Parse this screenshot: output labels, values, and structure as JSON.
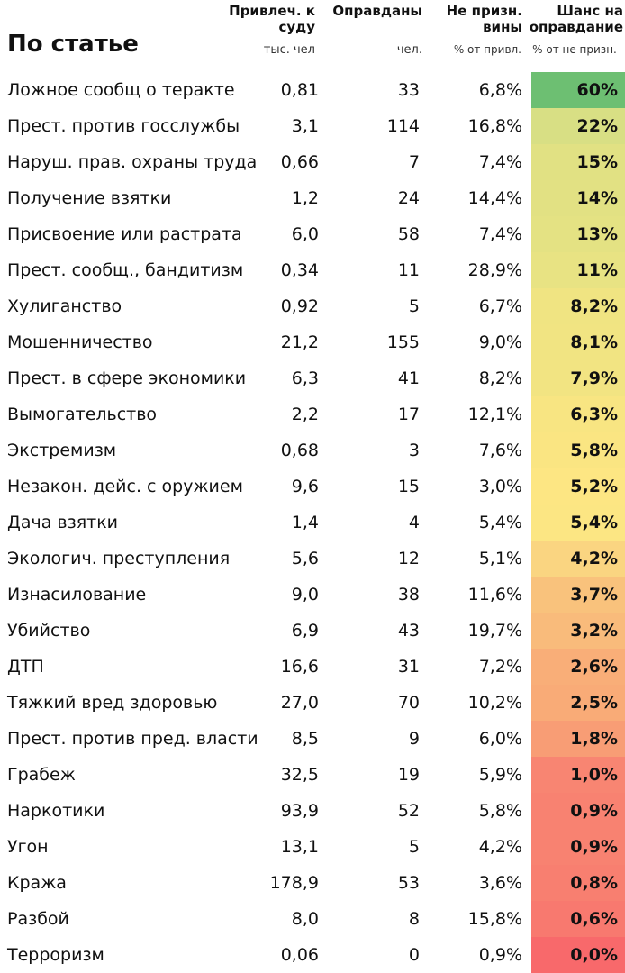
{
  "chart_data": {
    "type": "table",
    "title": "По статье",
    "columns": [
      {
        "key": "accused",
        "header": "Привлеч. к суду",
        "unit": "тыс. чел"
      },
      {
        "key": "acquitted",
        "header": "Оправданы",
        "unit": "чел."
      },
      {
        "key": "not_guilty",
        "header": "Не призн. вины",
        "unit": "% от привл."
      },
      {
        "key": "chance",
        "header": "Шанс на оправдание",
        "unit": "% от не призн."
      }
    ],
    "rows": [
      {
        "name": "Ложное сообщ о теракте",
        "accused": "0,81",
        "acquitted": "33",
        "not_guilty": "6,8%",
        "chance": "60%",
        "value": 60,
        "color": "#6dbf72"
      },
      {
        "name": "Прест. против госслужбы",
        "accused": "3,1",
        "acquitted": "114",
        "not_guilty": "16,8%",
        "chance": "22%",
        "value": 22,
        "color": "#d8df84"
      },
      {
        "name": "Наруш. прав. охраны труда",
        "accused": "0,66",
        "acquitted": "7",
        "not_guilty": "7,4%",
        "chance": "15%",
        "value": 15,
        "color": "#e1e183"
      },
      {
        "name": "Получение взятки",
        "accused": "1,2",
        "acquitted": "24",
        "not_guilty": "14,4%",
        "chance": "14%",
        "value": 14,
        "color": "#e2e183"
      },
      {
        "name": "Присвоение или растрата",
        "accused": "6,0",
        "acquitted": "58",
        "not_guilty": "7,4%",
        "chance": "13%",
        "value": 13,
        "color": "#e4e283"
      },
      {
        "name": "Прест. сообщ., бандитизм",
        "accused": "0,34",
        "acquitted": "11",
        "not_guilty": "28,9%",
        "chance": "11%",
        "value": 11,
        "color": "#e8e383"
      },
      {
        "name": "Хулиганство",
        "accused": "0,92",
        "acquitted": "5",
        "not_guilty": "6,7%",
        "chance": "8,2%",
        "value": 8.2,
        "color": "#f0e482"
      },
      {
        "name": "Мошенничество",
        "accused": "21,2",
        "acquitted": "155",
        "not_guilty": "9,0%",
        "chance": "8,1%",
        "value": 8.1,
        "color": "#f1e482"
      },
      {
        "name": "Прест. в сфере экономики",
        "accused": "6,3",
        "acquitted": "41",
        "not_guilty": "8,2%",
        "chance": "7,9%",
        "value": 7.9,
        "color": "#f2e482"
      },
      {
        "name": "Вымогательство",
        "accused": "2,2",
        "acquitted": "17",
        "not_guilty": "12,1%",
        "chance": "6,3%",
        "value": 6.3,
        "color": "#f8e582"
      },
      {
        "name": "Экстремизм",
        "accused": "0,68",
        "acquitted": "3",
        "not_guilty": "7,6%",
        "chance": "5,8%",
        "value": 5.8,
        "color": "#fae582"
      },
      {
        "name": "Незакон. дейс. с оружием",
        "accused": "9,6",
        "acquitted": "15",
        "not_guilty": "3,0%",
        "chance": "5,2%",
        "value": 5.2,
        "color": "#fde683"
      },
      {
        "name": "Дача взятки",
        "accused": "1,4",
        "acquitted": "4",
        "not_guilty": "5,4%",
        "chance": "5,4%",
        "value": 5.4,
        "color": "#fce683"
      },
      {
        "name": "Экологич. преступления",
        "accused": "5,6",
        "acquitted": "12",
        "not_guilty": "5,1%",
        "chance": "4,2%",
        "value": 4.2,
        "color": "#fad581"
      },
      {
        "name": "Изнасилование",
        "accused": "9,0",
        "acquitted": "38",
        "not_guilty": "11,6%",
        "chance": "3,7%",
        "value": 3.7,
        "color": "#f9c27c"
      },
      {
        "name": "Убийство",
        "accused": "6,9",
        "acquitted": "43",
        "not_guilty": "19,7%",
        "chance": "3,2%",
        "value": 3.2,
        "color": "#f9bb7b"
      },
      {
        "name": "ДТП",
        "accused": "16,6",
        "acquitted": "31",
        "not_guilty": "7,2%",
        "chance": "2,6%",
        "value": 2.6,
        "color": "#f9ae78"
      },
      {
        "name": "Тяжкий вред здоровью",
        "accused": "27,0",
        "acquitted": "70",
        "not_guilty": "10,2%",
        "chance": "2,5%",
        "value": 2.5,
        "color": "#f9ab77"
      },
      {
        "name": "Прест. против пред. власти",
        "accused": "8,5",
        "acquitted": "9",
        "not_guilty": "6,0%",
        "chance": "1,8%",
        "value": 1.8,
        "color": "#f89d75"
      },
      {
        "name": "Грабеж",
        "accused": "32,5",
        "acquitted": "19",
        "not_guilty": "5,9%",
        "chance": "1,0%",
        "value": 1.0,
        "color": "#f88572"
      },
      {
        "name": "Наркотики",
        "accused": "93,9",
        "acquitted": "52",
        "not_guilty": "5,8%",
        "chance": "0,9%",
        "value": 0.9,
        "color": "#f88271"
      },
      {
        "name": "Угон",
        "accused": "13,1",
        "acquitted": "5",
        "not_guilty": "4,2%",
        "chance": "0,9%",
        "value": 0.9,
        "color": "#f88271"
      },
      {
        "name": "Кража",
        "accused": "178,9",
        "acquitted": "53",
        "not_guilty": "3,6%",
        "chance": "0,8%",
        "value": 0.8,
        "color": "#f87f70"
      },
      {
        "name": "Разбой",
        "accused": "8,0",
        "acquitted": "8",
        "not_guilty": "15,8%",
        "chance": "0,6%",
        "value": 0.6,
        "color": "#f8796f"
      },
      {
        "name": "Терроризм",
        "accused": "0,06",
        "acquitted": "0",
        "not_guilty": "0,9%",
        "chance": "0,0%",
        "value": 0.0,
        "color": "#f8696b"
      }
    ]
  }
}
